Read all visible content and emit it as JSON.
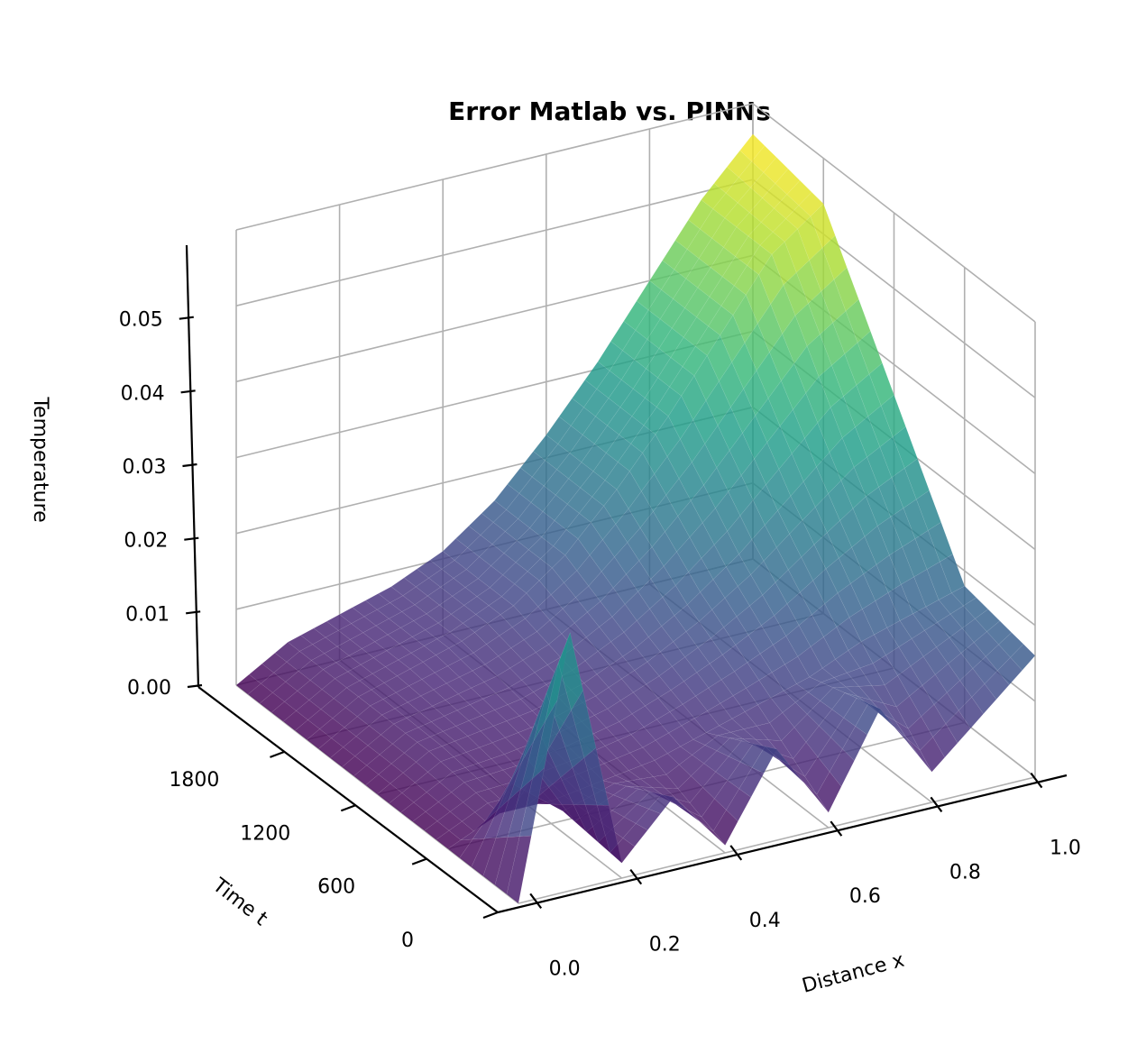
{
  "chart_data": {
    "type": "surface3d",
    "title": "Error Matlab vs. PINNs",
    "xlabel": "Distance x",
    "ylabel": "Time t",
    "zlabel": "Temperature",
    "xlim": [
      0.0,
      1.0
    ],
    "ylim": [
      0,
      2400
    ],
    "zlim": [
      0.0,
      0.06
    ],
    "x_ticks": [
      "0.0",
      "0.2",
      "0.4",
      "0.6",
      "0.8",
      "1.0"
    ],
    "y_ticks": [
      "0",
      "600",
      "1200",
      "1800"
    ],
    "z_ticks": [
      "0.00",
      "0.01",
      "0.02",
      "0.03",
      "0.04",
      "0.05"
    ],
    "colormap": "viridis",
    "grid": true,
    "surface_samples": {
      "description_of_axes": "rows: time t, columns: distance x",
      "x": [
        0.0,
        0.1,
        0.2,
        0.3,
        0.4,
        0.5,
        0.6,
        0.7,
        0.8,
        0.9,
        1.0
      ],
      "t": [
        0,
        600,
        1200,
        1800,
        2400
      ],
      "z": [
        [
          0.0,
          0.034,
          0.002,
          0.009,
          0.001,
          0.012,
          0.002,
          0.014,
          0.004,
          0.01,
          0.016
        ],
        [
          0.0,
          0.003,
          0.003,
          0.004,
          0.005,
          0.007,
          0.009,
          0.011,
          0.014,
          0.016,
          0.018
        ],
        [
          0.0,
          0.004,
          0.005,
          0.006,
          0.008,
          0.011,
          0.015,
          0.02,
          0.026,
          0.032,
          0.036
        ],
        [
          0.0,
          0.004,
          0.006,
          0.008,
          0.011,
          0.016,
          0.023,
          0.031,
          0.04,
          0.049,
          0.054
        ],
        [
          0.0,
          0.004,
          0.006,
          0.008,
          0.011,
          0.016,
          0.023,
          0.031,
          0.04,
          0.049,
          0.056
        ]
      ]
    }
  }
}
